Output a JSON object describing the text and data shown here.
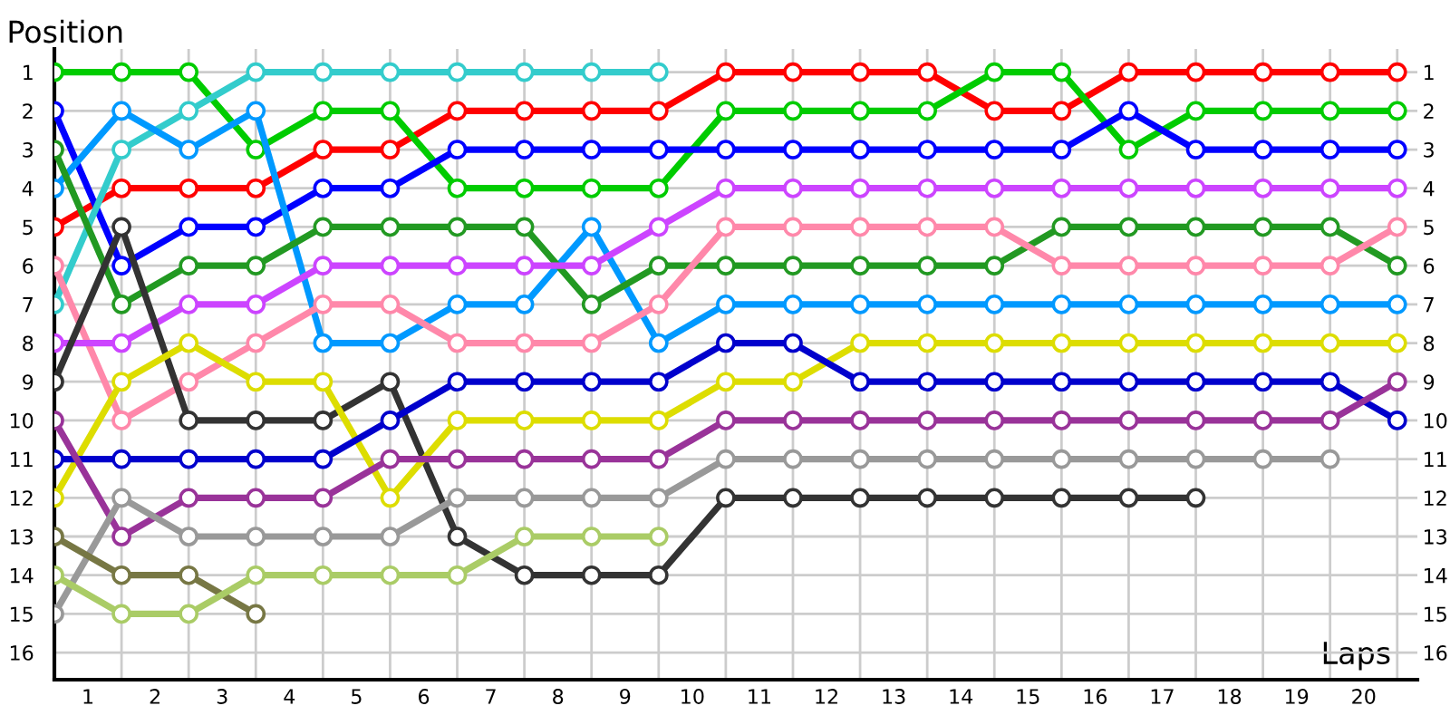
{
  "chart_data": {
    "type": "line",
    "xlabel": "Laps",
    "ylabel": "Position",
    "x": [
      0,
      1,
      2,
      3,
      4,
      5,
      6,
      7,
      8,
      9,
      10,
      11,
      12,
      13,
      14,
      15,
      16,
      17,
      18,
      19,
      20
    ],
    "xlim": [
      0,
      20.3
    ],
    "xticks": [
      {
        "value": 0.5,
        "label": "1"
      },
      {
        "value": 1.5,
        "label": "2"
      },
      {
        "value": 2.5,
        "label": "3"
      },
      {
        "value": 3.5,
        "label": "4"
      },
      {
        "value": 4.5,
        "label": "5"
      },
      {
        "value": 5.5,
        "label": "6"
      },
      {
        "value": 6.5,
        "label": "7"
      },
      {
        "value": 7.5,
        "label": "8"
      },
      {
        "value": 8.5,
        "label": "9"
      },
      {
        "value": 9.5,
        "label": "10"
      },
      {
        "value": 10.5,
        "label": "11"
      },
      {
        "value": 11.5,
        "label": "12"
      },
      {
        "value": 12.5,
        "label": "13"
      },
      {
        "value": 13.5,
        "label": "14"
      },
      {
        "value": 14.5,
        "label": "15"
      },
      {
        "value": 15.5,
        "label": "16"
      },
      {
        "value": 16.5,
        "label": "17"
      },
      {
        "value": 17.5,
        "label": "18"
      },
      {
        "value": 18.5,
        "label": "19"
      },
      {
        "value": 19.5,
        "label": "20"
      }
    ],
    "ylim": [
      16.7,
      0.4
    ],
    "yticks": [
      1,
      2,
      3,
      4,
      5,
      6,
      7,
      8,
      9,
      10,
      11,
      12,
      13,
      14,
      15,
      16
    ],
    "y2lim": [
      16.7,
      0.4
    ],
    "y2ticks": [
      1,
      2,
      3,
      4,
      5,
      6,
      7,
      8,
      9,
      10,
      11,
      12,
      13,
      14,
      15,
      16
    ],
    "grid": true,
    "marker": "circle",
    "line_style": "solid",
    "series": [
      {
        "color": "#ff0000",
        "values": [
          5,
          4,
          4,
          4,
          3,
          3,
          2,
          2,
          2,
          2,
          1,
          1,
          1,
          1,
          2,
          2,
          1,
          1,
          1,
          1,
          1
        ]
      },
      {
        "color": "#00cc00",
        "values": [
          1,
          1,
          1,
          3,
          2,
          2,
          4,
          4,
          4,
          4,
          2,
          2,
          2,
          2,
          1,
          1,
          3,
          2,
          2,
          2,
          2
        ]
      },
      {
        "color": "#0000ff",
        "values": [
          2,
          6,
          5,
          5,
          4,
          4,
          3,
          3,
          3,
          3,
          3,
          3,
          3,
          3,
          3,
          3,
          2,
          3,
          3,
          3,
          3
        ]
      },
      {
        "color": "#33cccc",
        "values": [
          7,
          3,
          2,
          1,
          1,
          1,
          1,
          1,
          1,
          1,
          null,
          null,
          null,
          null,
          null,
          null,
          null,
          null,
          null,
          null,
          null
        ]
      },
      {
        "color": "#0099ff",
        "values": [
          4,
          2,
          3,
          2,
          8,
          8,
          7,
          7,
          5,
          8,
          7,
          7,
          7,
          7,
          7,
          7,
          7,
          7,
          7,
          7,
          7
        ]
      },
      {
        "color": "#229922",
        "values": [
          3,
          7,
          6,
          6,
          5,
          5,
          5,
          5,
          7,
          6,
          6,
          6,
          6,
          6,
          6,
          5,
          5,
          5,
          5,
          5,
          6
        ]
      },
      {
        "color": "#ff88aa",
        "values": [
          6,
          10,
          9,
          8,
          7,
          7,
          8,
          8,
          8,
          7,
          5,
          5,
          5,
          5,
          5,
          6,
          6,
          6,
          6,
          6,
          5
        ]
      },
      {
        "color": "#cc44ff",
        "values": [
          8,
          8,
          7,
          7,
          6,
          6,
          6,
          6,
          6,
          5,
          4,
          4,
          4,
          4,
          4,
          4,
          4,
          4,
          4,
          4,
          4
        ]
      },
      {
        "color": "#333333",
        "values": [
          9,
          5,
          10,
          10,
          10,
          9,
          13,
          14,
          14,
          14,
          12,
          12,
          12,
          12,
          12,
          12,
          12,
          12,
          null,
          null,
          null
        ]
      },
      {
        "color": "#dddd00",
        "values": [
          12,
          9,
          8,
          9,
          9,
          12,
          10,
          10,
          10,
          10,
          9,
          9,
          8,
          8,
          8,
          8,
          8,
          8,
          8,
          8,
          8
        ]
      },
      {
        "color": "#0000cc",
        "values": [
          11,
          11,
          11,
          11,
          11,
          10,
          9,
          9,
          9,
          9,
          8,
          8,
          9,
          9,
          9,
          9,
          9,
          9,
          9,
          9,
          10
        ]
      },
      {
        "color": "#993399",
        "values": [
          10,
          13,
          12,
          12,
          12,
          11,
          11,
          11,
          11,
          11,
          10,
          10,
          10,
          10,
          10,
          10,
          10,
          10,
          10,
          10,
          9
        ]
      },
      {
        "color": "#999999",
        "values": [
          15,
          12,
          13,
          13,
          13,
          13,
          12,
          12,
          12,
          12,
          11,
          11,
          11,
          11,
          11,
          11,
          11,
          11,
          11,
          11,
          null
        ]
      },
      {
        "color": "#777744",
        "values": [
          13,
          14,
          14,
          15,
          null,
          null,
          null,
          null,
          null,
          null,
          null,
          null,
          null,
          null,
          null,
          null,
          null,
          null,
          null,
          null,
          null
        ]
      },
      {
        "color": "#aacc66",
        "values": [
          14,
          15,
          15,
          14,
          14,
          14,
          14,
          13,
          13,
          13,
          null,
          null,
          null,
          null,
          null,
          null,
          null,
          null,
          null,
          null,
          null
        ]
      }
    ]
  }
}
